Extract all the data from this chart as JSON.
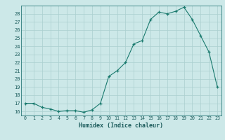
{
  "x": [
    0,
    1,
    2,
    3,
    4,
    5,
    6,
    7,
    8,
    9,
    10,
    11,
    12,
    13,
    14,
    15,
    16,
    17,
    18,
    19,
    20,
    21,
    22,
    23
  ],
  "y": [
    17.0,
    17.0,
    16.5,
    16.3,
    16.0,
    16.1,
    16.1,
    15.9,
    16.2,
    17.0,
    20.3,
    21.0,
    22.0,
    24.3,
    24.7,
    27.3,
    28.2,
    28.0,
    28.3,
    28.8,
    27.3,
    25.3,
    23.3,
    19.0
  ],
  "x_labels": [
    "0",
    "1",
    "2",
    "3",
    "4",
    "5",
    "6",
    "7",
    "8",
    "9",
    "10",
    "11",
    "12",
    "13",
    "14",
    "15",
    "16",
    "17",
    "18",
    "19",
    "20",
    "21",
    "22",
    "23"
  ],
  "y_min": 15.5,
  "y_max": 29.0,
  "y_ticks": [
    16,
    17,
    18,
    19,
    20,
    21,
    22,
    23,
    24,
    25,
    26,
    27,
    28
  ],
  "xlabel": "Humidex (Indice chaleur)",
  "line_color": "#1a7a6e",
  "bg_color": "#cce8e8",
  "grid_color": "#aacfcf"
}
